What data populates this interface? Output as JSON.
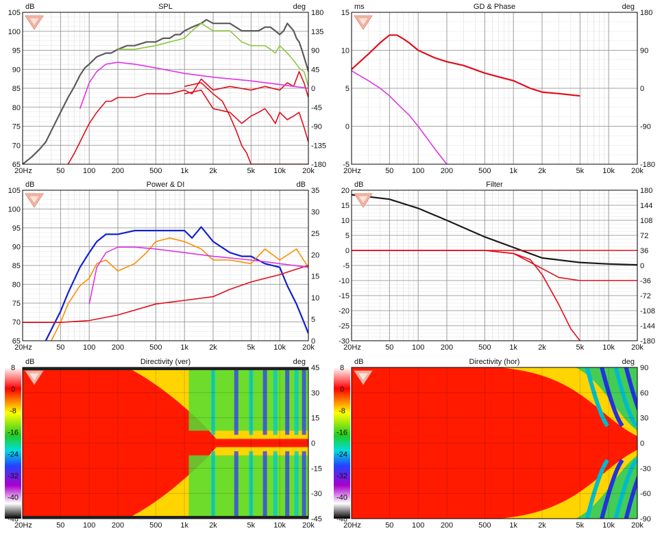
{
  "chart_data": [
    {
      "type": "line",
      "title": "SPL",
      "ylabel": "dB",
      "y2label": "deg",
      "x_ticks": [
        "20Hz",
        "50",
        "100",
        "200",
        "500",
        "1k",
        "2k",
        "5k",
        "10k",
        "20k"
      ],
      "y_ticks": [
        "105",
        "100",
        "95",
        "90",
        "85",
        "80",
        "75",
        "70",
        "65"
      ],
      "y2_ticks": [
        "180",
        "135",
        "90",
        "45",
        "0",
        "-45",
        "-90",
        "-135",
        "-180"
      ],
      "ylim": [
        65,
        106
      ],
      "y2lim": [
        -180,
        180
      ],
      "x_scale": "log",
      "xlim": [
        20,
        20000
      ],
      "series": [
        {
          "color": "#5a5a5a",
          "x": [
            20,
            25,
            30,
            35,
            40,
            50,
            60,
            70,
            80,
            90,
            100,
            120,
            150,
            170,
            200,
            250,
            300,
            400,
            500,
            600,
            700,
            800,
            900,
            1000,
            1200,
            1500,
            1700,
            2000,
            2500,
            3000,
            4000,
            5000,
            6000,
            7000,
            8000,
            9000,
            10000,
            11000,
            12000,
            13000,
            14000,
            15000,
            16000,
            17000,
            18000,
            19000,
            20000
          ],
          "y": [
            65,
            67,
            69,
            71,
            74,
            79,
            83,
            86,
            89,
            91,
            92,
            94,
            95,
            95,
            96,
            97,
            97,
            98,
            98,
            99,
            99,
            100,
            100,
            101,
            102,
            103,
            104,
            103,
            103,
            103,
            101,
            101,
            101,
            102,
            102,
            101,
            100,
            101,
            103,
            102,
            101,
            99,
            98,
            96,
            94,
            92,
            90
          ]
        },
        {
          "color": "#8ec63f",
          "x": [
            200,
            300,
            500,
            700,
            1000,
            1200,
            1500,
            2000,
            3000,
            4000,
            5000,
            7000,
            8000,
            9000,
            10000,
            12000,
            14000,
            16000,
            18000,
            20000
          ],
          "y": [
            96,
            96,
            97,
            98,
            99,
            101,
            103,
            101,
            101,
            98,
            97,
            97,
            96,
            95,
            97,
            95,
            93,
            91,
            90,
            86
          ]
        },
        {
          "color": "#e20c1a",
          "x": [
            60,
            70,
            80,
            100,
            120,
            150,
            170,
            200,
            300,
            400,
            500,
            700,
            1000,
            1200,
            1500,
            2000,
            3000,
            5000,
            7000,
            10000,
            12000,
            14000,
            16000,
            18000,
            20000
          ],
          "y": [
            65,
            68,
            71,
            76,
            79,
            82,
            82,
            83,
            83,
            84,
            84,
            84,
            85,
            84,
            88,
            85,
            86,
            85,
            86,
            85,
            87,
            86,
            90,
            87,
            83
          ]
        },
        {
          "color": "#e20c1a",
          "x": [
            1000,
            1500,
            2000,
            2500,
            3000,
            3500,
            4000,
            4500,
            5000,
            7000,
            8000,
            10000,
            12000,
            14000,
            16000,
            18000,
            20000
          ],
          "y": [
            86,
            87,
            84,
            82,
            78,
            74,
            70,
            68,
            65,
            65,
            65,
            65,
            65,
            65,
            65,
            65,
            65
          ]
        },
        {
          "color": "#e20c1a",
          "x": [
            1000,
            1500,
            2000,
            3000,
            4000,
            5000,
            6000,
            7000,
            8000,
            9000,
            10000,
            12000,
            14000,
            16000,
            18000,
            20000
          ],
          "y": [
            84,
            85,
            80,
            79,
            76,
            78,
            79,
            80,
            78,
            76,
            79,
            77,
            78,
            79,
            75,
            71
          ]
        },
        {
          "color": "#e033e6",
          "x": [
            80,
            100,
            120,
            150,
            200,
            300,
            500,
            1000,
            2000,
            5000,
            10000,
            20000
          ],
          "y": [
            80,
            87,
            90,
            92,
            92.5,
            92,
            91,
            89.5,
            88.5,
            87.5,
            86.5,
            85.5
          ]
        }
      ]
    },
    {
      "type": "line",
      "title": "GD & Phase",
      "ylabel": "ms",
      "y2label": "deg",
      "x_ticks": [
        "20Hz",
        "50",
        "100",
        "200",
        "500",
        "1k",
        "2k",
        "5k",
        "10k",
        "20k"
      ],
      "y_ticks": [
        "15",
        "10",
        "5",
        "0",
        "-5"
      ],
      "y2_ticks": [
        "180",
        "90",
        "0",
        "-90",
        "-180"
      ],
      "ylim": [
        -5,
        15
      ],
      "y2lim": [
        -180,
        180
      ],
      "x_scale": "log",
      "xlim": [
        20,
        20000
      ],
      "series": [
        {
          "color": "#e20c1a",
          "x": [
            20,
            30,
            40,
            50,
            60,
            70,
            80,
            100,
            150,
            200,
            300,
            500,
            700,
            1000,
            1500,
            2000,
            3000,
            5000
          ],
          "y": [
            7.5,
            9.5,
            11,
            12,
            12,
            11.5,
            11,
            10,
            9,
            8.5,
            8,
            7,
            6.5,
            6,
            5,
            4.5,
            4.3,
            4
          ]
        },
        {
          "color": "#e033e6",
          "x": [
            20,
            30,
            40,
            50,
            60,
            80,
            100,
            150,
            200
          ],
          "y": [
            7.3,
            6,
            5,
            4,
            3,
            1.5,
            0,
            -3,
            -5
          ]
        }
      ]
    },
    {
      "type": "line",
      "title": "Power & DI",
      "ylabel": "dB",
      "y2label": "dB",
      "x_ticks": [
        "20Hz",
        "50",
        "100",
        "200",
        "500",
        "1k",
        "2k",
        "5k",
        "10k",
        "20k"
      ],
      "y_ticks": [
        "105",
        "100",
        "95",
        "90",
        "85",
        "80",
        "75",
        "70",
        "65"
      ],
      "y2_ticks": [
        "35",
        "30",
        "25",
        "20",
        "15",
        "10",
        "5",
        "0"
      ],
      "ylim": [
        65,
        106
      ],
      "y2lim": [
        -6,
        35
      ],
      "x_scale": "log",
      "xlim": [
        20,
        20000
      ],
      "series": [
        {
          "color": "#1020d0",
          "x": [
            35,
            40,
            50,
            60,
            80,
            100,
            120,
            150,
            200,
            300,
            500,
            700,
            1000,
            1200,
            1500,
            2000,
            3000,
            4000,
            5000,
            7000,
            10000,
            12000,
            15000,
            18000,
            20000
          ],
          "y": [
            65,
            68,
            73,
            78,
            85,
            89,
            92,
            94,
            94,
            95,
            95,
            95,
            95,
            93,
            96,
            92,
            89,
            88,
            88,
            86,
            85,
            80,
            75,
            70,
            67
          ]
        },
        {
          "color": "#ff8c00",
          "x": [
            40,
            50,
            60,
            80,
            100,
            120,
            150,
            200,
            300,
            400,
            500,
            700,
            1000,
            1500,
            2000,
            3000,
            5000,
            7000,
            10000,
            15000,
            20000
          ],
          "y": [
            65,
            70,
            75,
            80,
            82,
            86,
            87,
            84,
            86,
            89,
            92,
            93,
            92,
            90,
            87,
            87,
            86,
            90,
            87,
            90,
            85
          ]
        },
        {
          "color": "#e20c1a",
          "x": [
            20,
            50,
            100,
            200,
            500,
            1000,
            2000,
            3000,
            5000,
            10000,
            15000,
            20000
          ],
          "y": [
            70,
            70,
            70.5,
            72,
            75,
            76,
            77,
            79,
            81,
            83,
            84.5,
            85.5
          ]
        },
        {
          "color": "#e033e6",
          "x": [
            100,
            120,
            150,
            200,
            300,
            500,
            1000,
            2000,
            5000,
            10000,
            20000
          ],
          "y": [
            75,
            85,
            89,
            90.5,
            90.5,
            90,
            89,
            88,
            87,
            86,
            85
          ]
        }
      ]
    },
    {
      "type": "line",
      "title": "Filter",
      "ylabel": "dB",
      "x_ticks": [
        "20Hz",
        "50",
        "100",
        "200",
        "500",
        "1k",
        "2k",
        "5k",
        "10k",
        "20k"
      ],
      "y_ticks": [
        "20",
        "15",
        "10",
        "5",
        "0",
        "-5",
        "-10",
        "-15",
        "-20",
        "-25",
        "-30"
      ],
      "y2_ticks": [
        "180",
        "144",
        "108",
        "72",
        "36",
        "0",
        "-36",
        "-72",
        "-108",
        "-144",
        "-180"
      ],
      "ylim": [
        -30,
        20
      ],
      "y2lim": [
        -180,
        180
      ],
      "x_scale": "log",
      "xlim": [
        20,
        20000
      ],
      "series": [
        {
          "color": "#1a1a1a",
          "x": [
            20,
            50,
            100,
            200,
            500,
            1000,
            2000,
            5000,
            10000,
            20000
          ],
          "y": [
            18.5,
            17,
            14,
            10,
            4.5,
            1,
            -2.5,
            -4,
            -4.5,
            -4.8
          ]
        },
        {
          "color": "#e20c1a",
          "x": [
            20,
            500,
            1000,
            2000,
            3000,
            5000,
            10000,
            20000
          ],
          "y": [
            0,
            0,
            -1,
            -6,
            -9,
            -10,
            -10,
            -10
          ]
        },
        {
          "color": "#e20c1a",
          "x": [
            20,
            500,
            1000,
            1500,
            2000,
            3000,
            4000,
            5000
          ],
          "y": [
            0,
            0,
            -1,
            -3,
            -8,
            -18,
            -26,
            -30
          ]
        },
        {
          "color": "#e20c1a",
          "x": [
            20,
            20000
          ],
          "y": [
            0,
            0
          ]
        }
      ]
    },
    {
      "type": "heatmap",
      "title": "Directivity (ver)",
      "ylabel": "dB",
      "y2label": "deg",
      "x_ticks": [
        "20Hz",
        "50",
        "100",
        "200",
        "500",
        "1k",
        "2k",
        "5k",
        "10k",
        "20k"
      ],
      "scale_ticks": [
        "8",
        "0",
        "-8",
        "-16",
        "-24",
        "-32",
        "-40",
        "-48"
      ],
      "y2_ticks": [
        "45",
        "30",
        "15",
        "0",
        "-15",
        "-30",
        "-45"
      ],
      "y2lim": [
        -45,
        45
      ],
      "x_scale": "log",
      "xlim": [
        20,
        20000
      ]
    },
    {
      "type": "heatmap",
      "title": "Directivity (hor)",
      "ylabel": "dB",
      "y2label": "deg",
      "x_ticks": [
        "20Hz",
        "50",
        "100",
        "200",
        "500",
        "1k",
        "2k",
        "5k",
        "10k",
        "20k"
      ],
      "scale_ticks": [
        "8",
        "0",
        "-8",
        "-16",
        "-24",
        "-32",
        "-40",
        "-48"
      ],
      "y2_ticks": [
        "90",
        "60",
        "30",
        "0",
        "-30",
        "-60",
        "-90"
      ],
      "y2lim": [
        -90,
        90
      ],
      "x_scale": "log",
      "xlim": [
        20,
        20000
      ]
    }
  ]
}
